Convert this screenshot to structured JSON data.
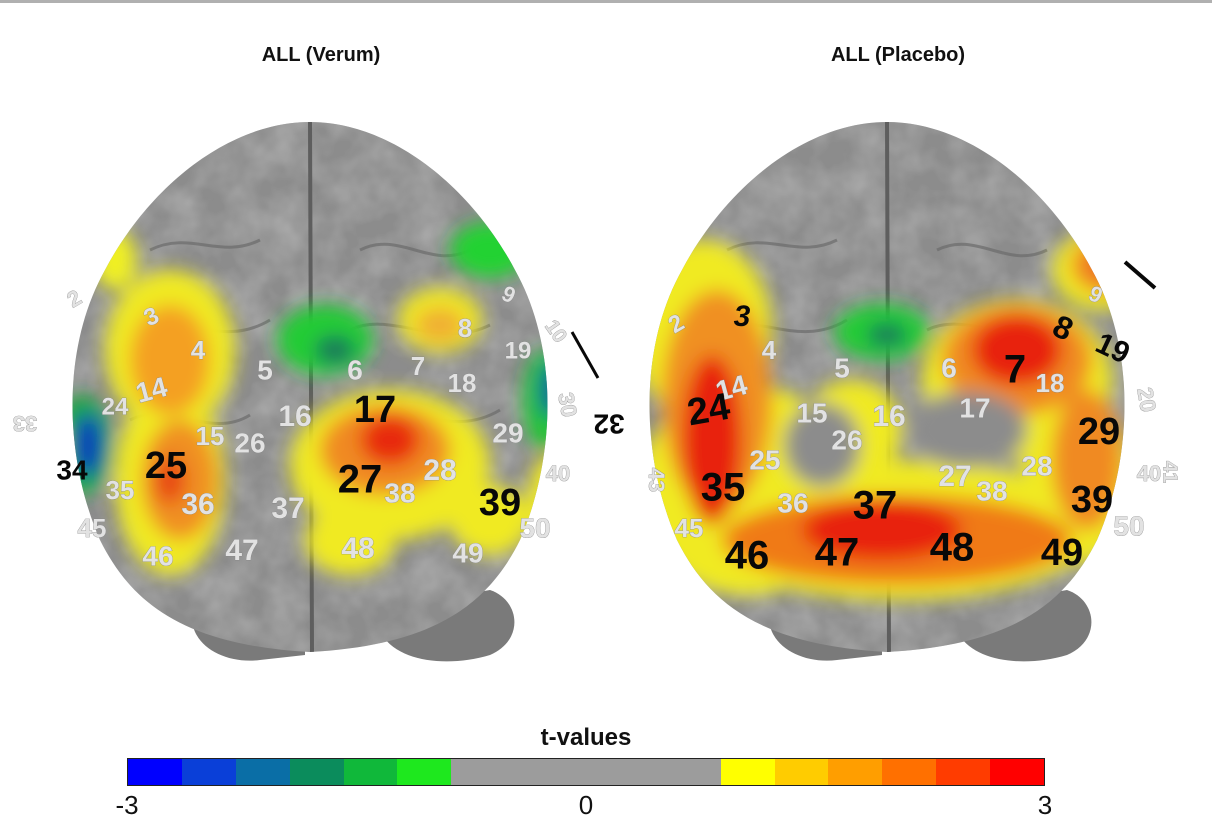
{
  "panels": [
    {
      "title": "ALL  (Verum)",
      "white_labels": [
        "2",
        "3",
        "4",
        "5",
        "6",
        "7",
        "8",
        "9",
        "10",
        "14",
        "15",
        "16",
        "18",
        "19",
        "24",
        "26",
        "28",
        "29",
        "30",
        "33",
        "35",
        "36",
        "37",
        "38",
        "40",
        "45",
        "46",
        "47",
        "48",
        "49",
        "50"
      ],
      "black_labels": [
        "17",
        "25",
        "27",
        "34",
        "39"
      ]
    },
    {
      "title": "ALL (Placebo)",
      "white_labels": [
        "2",
        "4",
        "5",
        "6",
        "9",
        "14",
        "15",
        "16",
        "17",
        "18",
        "20",
        "25",
        "26",
        "27",
        "28",
        "36",
        "38",
        "40",
        "41",
        "43",
        "45",
        "50"
      ],
      "black_labels": [
        "3",
        "7",
        "8",
        "19",
        "24",
        "29",
        "32",
        "35",
        "37",
        "39",
        "46",
        "47",
        "48",
        "49"
      ]
    }
  ],
  "colorbar": {
    "title": "t-values",
    "min_label": "-3",
    "mid_label": "0",
    "max_label": "3",
    "colors": [
      "#0000ff",
      "#0a3fd8",
      "#0a6ea6",
      "#0b8c5c",
      "#10b83a",
      "#1ee81e",
      "#9c9c9c",
      "#9c9c9c",
      "#9c9c9c",
      "#9c9c9c",
      "#9c9c9c",
      "#ffff00",
      "#ffcc00",
      "#ff9e00",
      "#ff7000",
      "#ff3c00",
      "#ff0000"
    ]
  }
}
